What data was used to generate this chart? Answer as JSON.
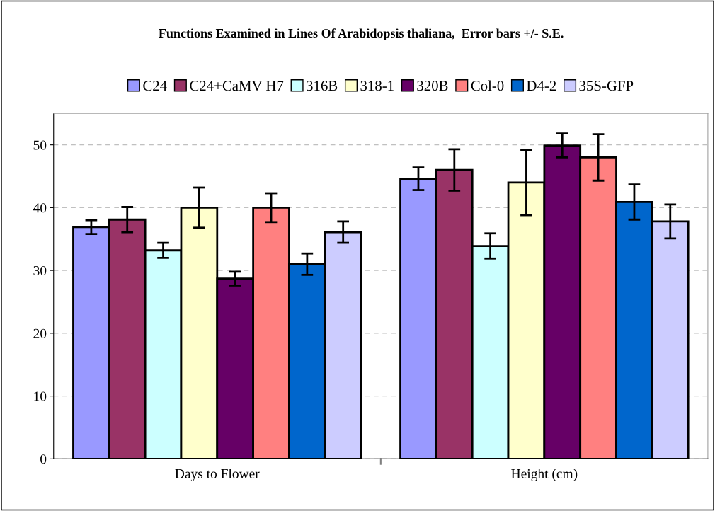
{
  "chart_data": {
    "type": "bar",
    "title": "Functions Examined in Lines Of Arabidopsis thaliana,  Error bars +/- S.E.",
    "categories": [
      "Days to Flower",
      "Height (cm)"
    ],
    "series": [
      {
        "name": "C24",
        "color": "#9999ff",
        "values": [
          36.9,
          44.6
        ],
        "errors": [
          1.1,
          1.8
        ]
      },
      {
        "name": "C24+CaMV H7",
        "color": "#993366",
        "values": [
          38.1,
          46.0
        ],
        "errors": [
          2.0,
          3.3
        ]
      },
      {
        "name": "316B",
        "color": "#ccffff",
        "values": [
          33.2,
          33.9
        ],
        "errors": [
          1.2,
          2.0
        ]
      },
      {
        "name": "318-1",
        "color": "#ffffcc",
        "values": [
          40.0,
          44.0
        ],
        "errors": [
          3.2,
          5.2
        ]
      },
      {
        "name": "320B",
        "color": "#660066",
        "values": [
          28.7,
          49.9
        ],
        "errors": [
          1.1,
          1.9
        ]
      },
      {
        "name": "Col-0",
        "color": "#ff8080",
        "values": [
          40.0,
          48.0
        ],
        "errors": [
          2.3,
          3.7
        ]
      },
      {
        "name": "D4-2",
        "color": "#0066cc",
        "values": [
          31.0,
          40.9
        ],
        "errors": [
          1.7,
          2.8
        ]
      },
      {
        "name": "35S-GFP",
        "color": "#ccccff",
        "values": [
          36.1,
          37.8
        ],
        "errors": [
          1.7,
          2.7
        ]
      }
    ],
    "ylim": [
      0,
      55
    ],
    "yticks": [
      0,
      10,
      20,
      30,
      40,
      50
    ],
    "grid": "y",
    "legend": "top"
  }
}
